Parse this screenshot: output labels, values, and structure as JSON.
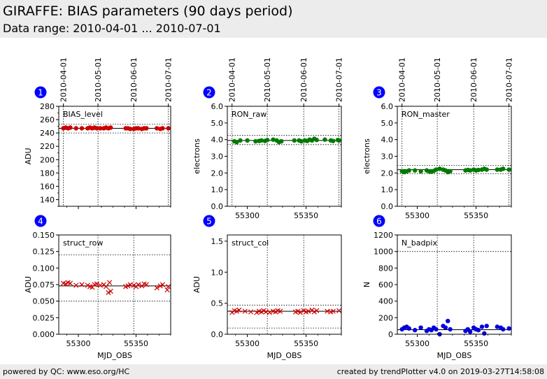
{
  "header": {
    "title": "GIRAFFE: BIAS parameters (90 days period)",
    "subtitle": "Data range: 2010-04-01 ... 2010-07-01"
  },
  "footer": {
    "left": "powered by QC: www.eso.org/HC",
    "right": "created by trendPlotter v4.0 on 2019-03-27T14:58:08"
  },
  "colors": {
    "red": "#cc0000",
    "green": "#007a00",
    "blue": "#0000dd",
    "badge": "#0000ff",
    "header_bg": "#ececec"
  },
  "chart_data": [
    {
      "number": "1",
      "type": "scatter",
      "title": "BIAS_level",
      "xlabel": "",
      "ylabel": "ADU",
      "xlim": [
        55283,
        55380
      ],
      "ylim": [
        130,
        280
      ],
      "yticks": [
        140,
        160,
        180,
        200,
        220,
        240,
        260,
        280
      ],
      "ytick_labels": [
        "140",
        "160",
        "180",
        "200",
        "220",
        "240",
        "260",
        "280"
      ],
      "xticks": [
        55300,
        55350
      ],
      "xtick_labels": [
        "",
        ""
      ],
      "top_dates": [
        "2010-04-01",
        "2010-05-01",
        "2010-06-01",
        "2010-07-01"
      ],
      "top_date_mjd": [
        55287,
        55317,
        55348,
        55378
      ],
      "marker": "dot",
      "color": "#cc0000",
      "ref_line": 247,
      "ref_band": [
        240,
        253
      ],
      "x": [
        55287,
        55289,
        55291,
        55293,
        55298,
        55303,
        55308,
        55310,
        55312,
        55314,
        55316,
        55319,
        55322,
        55324,
        55326,
        55328,
        55341,
        55343,
        55345,
        55348,
        55350,
        55352,
        55355,
        55357,
        55359,
        55368,
        55371,
        55373,
        55378
      ],
      "y": [
        247,
        248,
        247,
        248,
        247,
        247,
        247,
        248,
        247,
        248,
        247,
        247,
        247,
        248,
        247,
        248,
        247,
        247,
        246,
        246,
        247,
        247,
        246,
        247,
        247,
        247,
        246,
        247,
        247
      ]
    },
    {
      "number": "2",
      "type": "scatter",
      "title": "RON_raw",
      "xlabel": "",
      "ylabel": "electrons",
      "xlim": [
        55283,
        55380
      ],
      "ylim": [
        0,
        6
      ],
      "yticks": [
        0,
        1,
        2,
        3,
        4,
        5,
        6
      ],
      "ytick_labels": [
        "0.0",
        "1.0",
        "2.0",
        "3.0",
        "4.0",
        "5.0",
        "6.0"
      ],
      "xticks": [
        55300,
        55350
      ],
      "xtick_labels": [
        "55300",
        "55350"
      ],
      "top_dates": [
        "2010-04-01",
        "2010-05-01",
        "2010-06-01",
        "2010-07-01"
      ],
      "top_date_mjd": [
        55287,
        55317,
        55348,
        55378
      ],
      "marker": "dot",
      "color": "#007a00",
      "ref_line": 3.95,
      "ref_band": [
        3.7,
        4.25
      ],
      "x": [
        55289,
        55291,
        55294,
        55300,
        55307,
        55310,
        55312,
        55315,
        55317,
        55322,
        55325,
        55327,
        55329,
        55340,
        55344,
        55346,
        55349,
        55351,
        55353,
        55355,
        55357,
        55359,
        55366,
        55371,
        55373,
        55377,
        55378
      ],
      "y": [
        3.9,
        3.85,
        3.95,
        3.95,
        3.9,
        3.92,
        3.95,
        3.92,
        3.98,
        4.0,
        3.95,
        3.85,
        3.9,
        3.95,
        3.95,
        3.9,
        3.95,
        3.92,
        4.0,
        3.95,
        4.05,
        3.98,
        4.0,
        3.95,
        3.92,
        3.98,
        3.95
      ]
    },
    {
      "number": "3",
      "type": "scatter",
      "title": "RON_master",
      "xlabel": "",
      "ylabel": "electrons",
      "xlim": [
        55283,
        55380
      ],
      "ylim": [
        0,
        6
      ],
      "yticks": [
        0,
        1,
        2,
        3,
        4,
        5,
        6
      ],
      "ytick_labels": [
        "0.0",
        "1.0",
        "2.0",
        "3.0",
        "4.0",
        "5.0",
        "6.0"
      ],
      "xticks": [
        55300,
        55350
      ],
      "xtick_labels": [
        "55300",
        "55350"
      ],
      "top_dates": [
        "2010-04-01",
        "2010-05-01",
        "2010-06-01",
        "2010-07-01"
      ],
      "top_date_mjd": [
        55287,
        55317,
        55348,
        55378
      ],
      "marker": "dot",
      "color": "#007a00",
      "ref_line": 2.2,
      "ref_band": [
        1.95,
        2.45
      ],
      "x": [
        55287,
        55289,
        55291,
        55293,
        55298,
        55303,
        55308,
        55310,
        55312,
        55314,
        55316,
        55319,
        55322,
        55324,
        55326,
        55328,
        55341,
        55343,
        55345,
        55348,
        55350,
        55352,
        55355,
        55357,
        55359,
        55368,
        55371,
        55373,
        55378
      ],
      "y": [
        2.1,
        2.05,
        2.1,
        2.15,
        2.15,
        2.1,
        2.15,
        2.1,
        2.08,
        2.12,
        2.2,
        2.25,
        2.2,
        2.15,
        2.05,
        2.1,
        2.15,
        2.18,
        2.15,
        2.2,
        2.15,
        2.18,
        2.2,
        2.25,
        2.2,
        2.2,
        2.2,
        2.25,
        2.2
      ]
    },
    {
      "number": "4",
      "type": "scatter",
      "title": "struct_row",
      "xlabel": "MJD_OBS",
      "ylabel": "ADU",
      "xlim": [
        55283,
        55380
      ],
      "ylim": [
        0,
        0.15
      ],
      "yticks": [
        0,
        0.025,
        0.05,
        0.075,
        0.1,
        0.125,
        0.15
      ],
      "ytick_labels": [
        "0.000",
        "0.025",
        "0.050",
        "0.075",
        "0.100",
        "0.125",
        "0.150"
      ],
      "xticks": [
        55300,
        55350
      ],
      "xtick_labels": [
        "55300",
        "55350"
      ],
      "marker": "x",
      "color": "#cc0000",
      "ref_line": 0.073,
      "ref_band": [
        0.05,
        0.12
      ],
      "x": [
        55287,
        55289,
        55291,
        55293,
        55298,
        55303,
        55308,
        55310,
        55312,
        55314,
        55316,
        55319,
        55322,
        55324,
        55326,
        55327,
        55328,
        55341,
        55343,
        55345,
        55348,
        55350,
        55352,
        55355,
        55357,
        55359,
        55368,
        55371,
        55373,
        55377,
        55378
      ],
      "y": [
        0.077,
        0.076,
        0.078,
        0.077,
        0.074,
        0.075,
        0.074,
        0.072,
        0.071,
        0.075,
        0.076,
        0.074,
        0.075,
        0.072,
        0.063,
        0.078,
        0.065,
        0.072,
        0.073,
        0.075,
        0.074,
        0.072,
        0.075,
        0.073,
        0.076,
        0.075,
        0.07,
        0.073,
        0.075,
        0.067,
        0.072
      ]
    },
    {
      "number": "5",
      "type": "scatter",
      "title": "struct_col",
      "xlabel": "MJD_OBS",
      "ylabel": "ADU",
      "xlim": [
        55283,
        55380
      ],
      "ylim": [
        0,
        1.6
      ],
      "yticks": [
        0,
        0.5,
        1.0,
        1.5
      ],
      "ytick_labels": [
        "0.0",
        "0.5",
        "1.0",
        "1.5"
      ],
      "xticks": [
        55300,
        55350
      ],
      "xtick_labels": [
        "55300",
        "55350"
      ],
      "marker": "x",
      "color": "#cc0000",
      "ref_line": 0.37,
      "ref_band": [
        0.1,
        0.47
      ],
      "x": [
        55287,
        55289,
        55291,
        55293,
        55298,
        55303,
        55308,
        55310,
        55312,
        55314,
        55316,
        55319,
        55322,
        55324,
        55326,
        55328,
        55341,
        55343,
        55345,
        55348,
        55350,
        55352,
        55355,
        55357,
        55359,
        55368,
        55371,
        55373,
        55378
      ],
      "y": [
        0.35,
        0.38,
        0.37,
        0.39,
        0.37,
        0.36,
        0.35,
        0.37,
        0.36,
        0.38,
        0.36,
        0.35,
        0.37,
        0.36,
        0.38,
        0.37,
        0.36,
        0.37,
        0.35,
        0.38,
        0.36,
        0.37,
        0.39,
        0.36,
        0.38,
        0.37,
        0.36,
        0.37,
        0.38
      ]
    },
    {
      "number": "6",
      "type": "scatter",
      "title": "N_badpix",
      "xlabel": "MJD_OBS",
      "ylabel": "N",
      "xlim": [
        55283,
        55380
      ],
      "ylim": [
        0,
        1200
      ],
      "yticks": [
        0,
        200,
        400,
        600,
        800,
        1000,
        1200
      ],
      "ytick_labels": [
        "0",
        "200",
        "400",
        "600",
        "800",
        "1000",
        "1200"
      ],
      "xticks": [
        55300,
        55350
      ],
      "xtick_labels": [
        "55300",
        "55350"
      ],
      "marker": "dot",
      "color": "#0000dd",
      "ref_line": 55,
      "ref_band": [
        0,
        1000
      ],
      "x": [
        55287,
        55289,
        55291,
        55293,
        55298,
        55303,
        55308,
        55310,
        55312,
        55314,
        55316,
        55319,
        55322,
        55324,
        55326,
        55328,
        55341,
        55343,
        55345,
        55348,
        55350,
        55352,
        55355,
        55357,
        55359,
        55368,
        55371,
        55373,
        55378
      ],
      "y": [
        60,
        80,
        90,
        70,
        50,
        80,
        40,
        60,
        50,
        80,
        60,
        0,
        100,
        80,
        160,
        60,
        40,
        60,
        30,
        80,
        60,
        50,
        90,
        10,
        100,
        90,
        80,
        60,
        70
      ]
    }
  ]
}
